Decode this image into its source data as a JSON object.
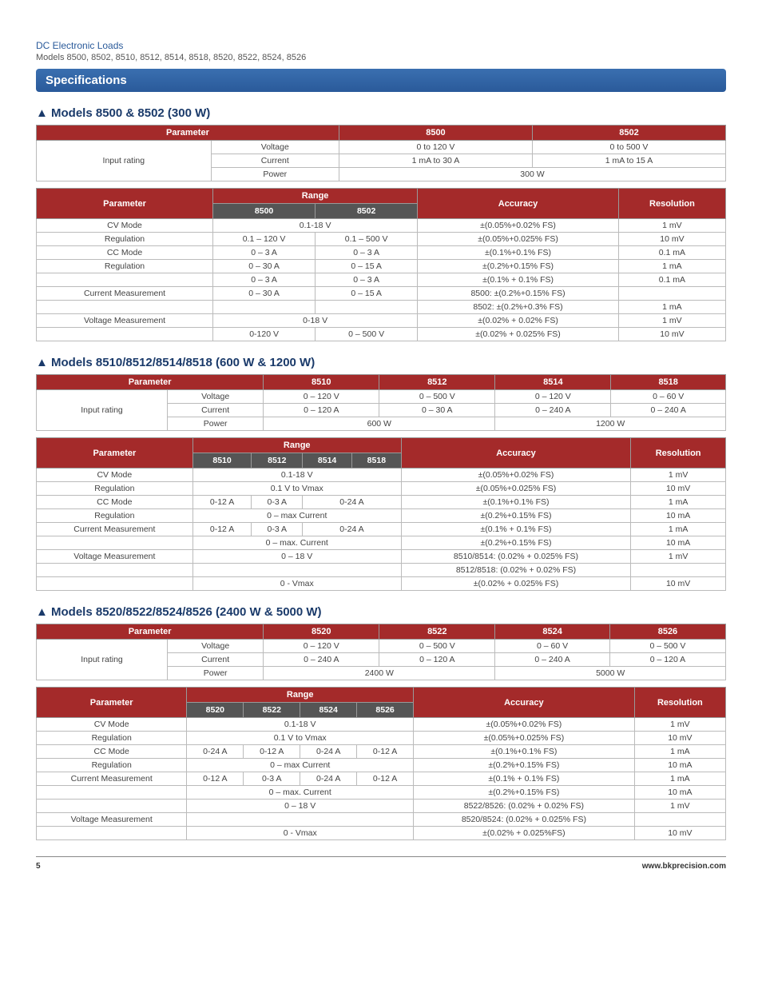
{
  "header": {
    "series": "DC Electronic Loads",
    "models_line": "Models 8500, 8502, 8510, 8512, 8514, 8518, 8520, 8522, 8524, 8526",
    "spec_title": "Specifications"
  },
  "footer": {
    "page": "5",
    "url": "www.bkprecision.com"
  },
  "colors": {
    "header_bar_bg": "#2a5a9a",
    "table_header_bg": "#a42a2a",
    "table_subheader_bg": "#555555",
    "border": "#bbbbbb",
    "text": "#444444"
  },
  "section1": {
    "title": "Models 8500 & 8502 (300 W)",
    "input_table": {
      "h_param": "Parameter",
      "h_m1": "8500",
      "h_m2": "8502",
      "rowlabel": "Input rating",
      "r1": [
        "Voltage",
        "0 to 120 V",
        "0 to 500 V"
      ],
      "r2": [
        "Current",
        "1 mA to 30 A",
        "1 mA to 15 A"
      ],
      "r3": [
        "Power",
        "300 W"
      ]
    },
    "spec_table": {
      "h_param": "Parameter",
      "h_range": "Range",
      "h_acc": "Accuracy",
      "h_res": "Resolution",
      "h_r1": "8500",
      "h_r2": "8502",
      "rows": [
        {
          "p": "CV Mode",
          "r": "0.1-18 V",
          "r2": "",
          "acc": "±(0.05%+0.02% FS)",
          "res": "1 mV",
          "span": true
        },
        {
          "p": "Regulation",
          "r": "0.1 – 120 V",
          "r2": "0.1 – 500 V",
          "acc": "±(0.05%+0.025% FS)",
          "res": "10 mV"
        },
        {
          "p": "CC Mode",
          "r": "0 – 3 A",
          "r2": "0 – 3 A",
          "acc": "±(0.1%+0.1% FS)",
          "res": "0.1 mA"
        },
        {
          "p": "Regulation",
          "r": "0 – 30 A",
          "r2": "0 – 15 A",
          "acc": "±(0.2%+0.15% FS)",
          "res": "1 mA"
        },
        {
          "p": "",
          "r": "0 – 3 A",
          "r2": "0 – 3 A",
          "acc": "±(0.1% + 0.1% FS)",
          "res": "0.1 mA"
        },
        {
          "p": "Current Measurement",
          "r": "0 – 30 A",
          "r2": "0 – 15 A",
          "acc": "8500: ±(0.2%+0.15% FS)",
          "res": ""
        },
        {
          "p": "",
          "r": "",
          "r2": "",
          "acc": "8502: ±(0.2%+0.3% FS)",
          "res": "1 mA"
        },
        {
          "p": "Voltage Measurement",
          "r": "0-18 V",
          "r2": "",
          "acc": "±(0.02% + 0.02% FS)",
          "res": "1 mV",
          "span": true
        },
        {
          "p": "",
          "r": "0-120 V",
          "r2": "0 – 500 V",
          "acc": "±(0.02% + 0.025% FS)",
          "res": "10 mV"
        }
      ]
    }
  },
  "section2": {
    "title": "Models 8510/8512/8514/8518 (600 W & 1200 W)",
    "input_table": {
      "h_param": "Parameter",
      "h1": "8510",
      "h2": "8512",
      "h3": "8514",
      "h4": "8518",
      "rowlabel": "Input rating",
      "r1": [
        "Voltage",
        "0 – 120 V",
        "0 – 500 V",
        "0 – 120 V",
        "0 – 60 V"
      ],
      "r2": [
        "Current",
        "0 – 120 A",
        "0 – 30 A",
        "0 – 240 A",
        "0 – 240 A"
      ],
      "r3": [
        "Power",
        "600 W",
        "1200 W"
      ]
    },
    "spec_table": {
      "h_param": "Parameter",
      "h_range": "Range",
      "h_acc": "Accuracy",
      "h_res": "Resolution",
      "h_r1": "8510",
      "h_r2": "8512",
      "h_r3": "8514",
      "h_r4": "8518",
      "rows": [
        {
          "p": "CV Mode",
          "r": "0.1-18 V",
          "acc": "±(0.05%+0.02% FS)",
          "res": "1 mV"
        },
        {
          "p": "Regulation",
          "r": "0.1 V to Vmax",
          "acc": "±(0.05%+0.025% FS)",
          "res": "10 mV"
        },
        {
          "p": "CC Mode",
          "r1": "0-12 A",
          "r2": "0-3 A",
          "r34": "0-24 A",
          "acc": "±(0.1%+0.1% FS)",
          "res": "1 mA"
        },
        {
          "p": "Regulation",
          "r": "0 – max Current",
          "acc": "±(0.2%+0.15% FS)",
          "res": "10 mA"
        },
        {
          "p": "Current Measurement",
          "r1": "0-12 A",
          "r2": "0-3 A",
          "r34": "0-24 A",
          "acc": "±(0.1% + 0.1% FS)",
          "res": "1 mA"
        },
        {
          "p": "",
          "r": "0 – max. Current",
          "acc": "±(0.2%+0.15% FS)",
          "res": "10 mA"
        },
        {
          "p": "Voltage Measurement",
          "r": "0 – 18 V",
          "acc": "8510/8514: (0.02% + 0.025% FS)",
          "res": "1 mV"
        },
        {
          "p": "",
          "r": "",
          "acc": "8512/8518: (0.02% + 0.02% FS)",
          "res": ""
        },
        {
          "p": "",
          "r": "0 - Vmax",
          "acc": "±(0.02% + 0.025% FS)",
          "res": "10 mV"
        }
      ]
    }
  },
  "section3": {
    "title": "Models 8520/8522/8524/8526 (2400 W & 5000 W)",
    "input_table": {
      "h_param": "Parameter",
      "h1": "8520",
      "h2": "8522",
      "h3": "8524",
      "h4": "8526",
      "rowlabel": "Input rating",
      "r1": [
        "Voltage",
        "0 – 120 V",
        "0 – 500 V",
        "0 – 60 V",
        "0 – 500 V"
      ],
      "r2": [
        "Current",
        "0 – 240 A",
        "0 – 120 A",
        "0 – 240 A",
        "0 – 120 A"
      ],
      "r3": [
        "Power",
        "2400 W",
        "5000 W"
      ]
    },
    "spec_table": {
      "h_param": "Parameter",
      "h_range": "Range",
      "h_acc": "Accuracy",
      "h_res": "Resolution",
      "h_r1": "8520",
      "h_r2": "8522",
      "h_r3": "8524",
      "h_r4": "8526",
      "rows": [
        {
          "p": "CV Mode",
          "r": "0.1-18 V",
          "acc": "±(0.05%+0.02% FS)",
          "res": "1 mV"
        },
        {
          "p": "Regulation",
          "r": "0.1 V to Vmax",
          "acc": "±(0.05%+0.025% FS)",
          "res": "10 mV"
        },
        {
          "p": "CC Mode",
          "r1": "0-24 A",
          "r2": "0-12 A",
          "r3": "0-24 A",
          "r4": "0-12 A",
          "acc": "±(0.1%+0.1% FS)",
          "res": "1 mA"
        },
        {
          "p": "Regulation",
          "r": "0 – max Current",
          "acc": "±(0.2%+0.15% FS)",
          "res": "10 mA"
        },
        {
          "p": "Current Measurement",
          "r1": "0-12 A",
          "r2": "0-3 A",
          "r3": "0-24 A",
          "r4": "0-12 A",
          "acc": "±(0.1% + 0.1% FS)",
          "res": "1 mA"
        },
        {
          "p": "",
          "r": "0 – max. Current",
          "acc": "±(0.2%+0.15% FS)",
          "res": "10 mA"
        },
        {
          "p": "",
          "r": "0 – 18 V",
          "acc": "8522/8526: (0.02% + 0.02% FS)",
          "res": "1 mV"
        },
        {
          "p": "Voltage Measurement",
          "r": "",
          "acc": "8520/8524: (0.02% + 0.025% FS)",
          "res": ""
        },
        {
          "p": "",
          "r": "0 - Vmax",
          "acc": "±(0.02% + 0.025%FS)",
          "res": "10 mV"
        }
      ]
    }
  }
}
